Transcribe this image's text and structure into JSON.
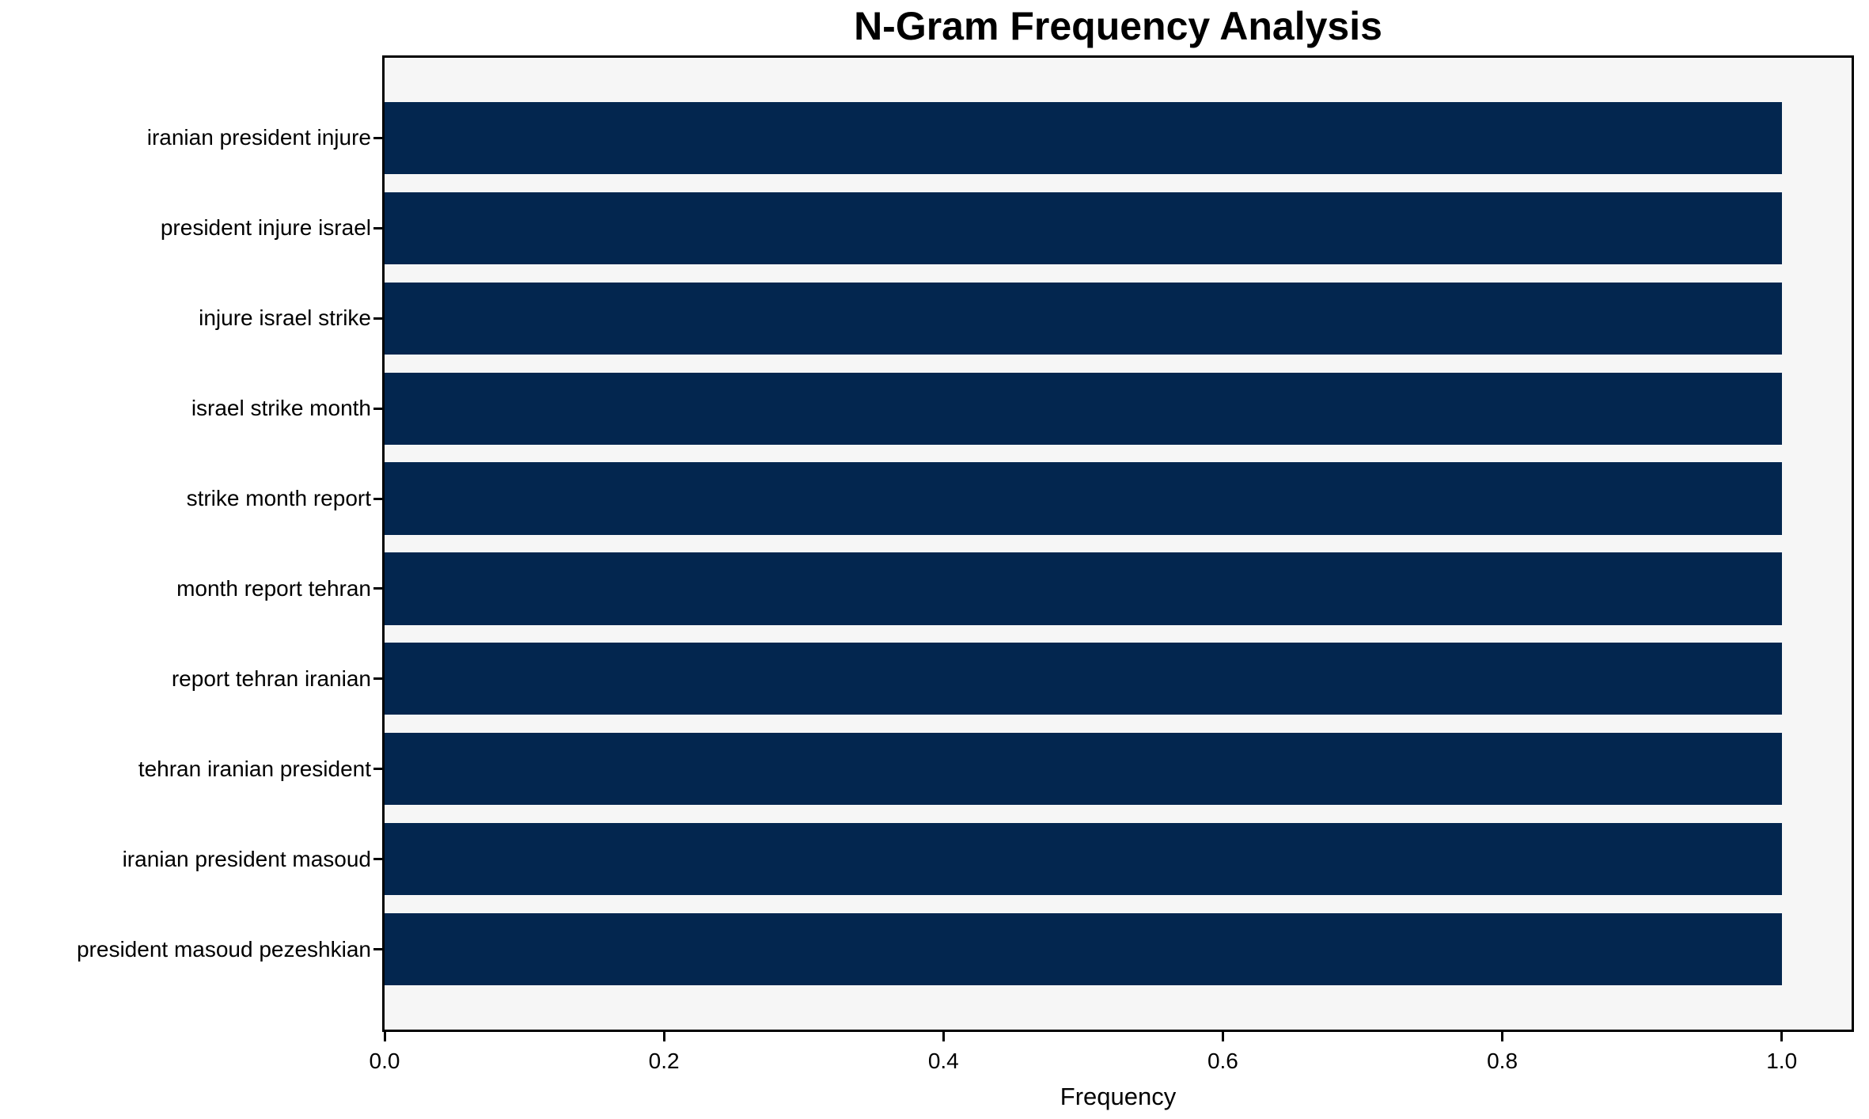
{
  "chart_data": {
    "type": "bar",
    "orientation": "horizontal",
    "title": "N-Gram Frequency Analysis",
    "xlabel": "Frequency",
    "ylabel": "",
    "categories": [
      "iranian president injure",
      "president injure israel",
      "injure israel strike",
      "israel strike month",
      "strike month report",
      "month report tehran",
      "report tehran iranian",
      "tehran iranian president",
      "iranian president masoud",
      "president masoud pezeshkian"
    ],
    "values": [
      1.0,
      1.0,
      1.0,
      1.0,
      1.0,
      1.0,
      1.0,
      1.0,
      1.0,
      1.0
    ],
    "xlim": [
      0,
      1.05
    ],
    "ylim_units": [
      -0.89,
      9.89
    ],
    "bar_height_units": 0.8,
    "xticks": [
      0.0,
      0.2,
      0.4,
      0.6,
      0.8,
      1.0
    ],
    "xtick_labels": [
      "0.0",
      "0.2",
      "0.4",
      "0.6",
      "0.8",
      "1.0"
    ],
    "grid": false,
    "legend": null,
    "colors": {
      "bar": "#03264f",
      "plot_background": "#f6f6f6",
      "figure_background": "#ffffff",
      "spine": "#000000",
      "text": "#000000"
    }
  }
}
